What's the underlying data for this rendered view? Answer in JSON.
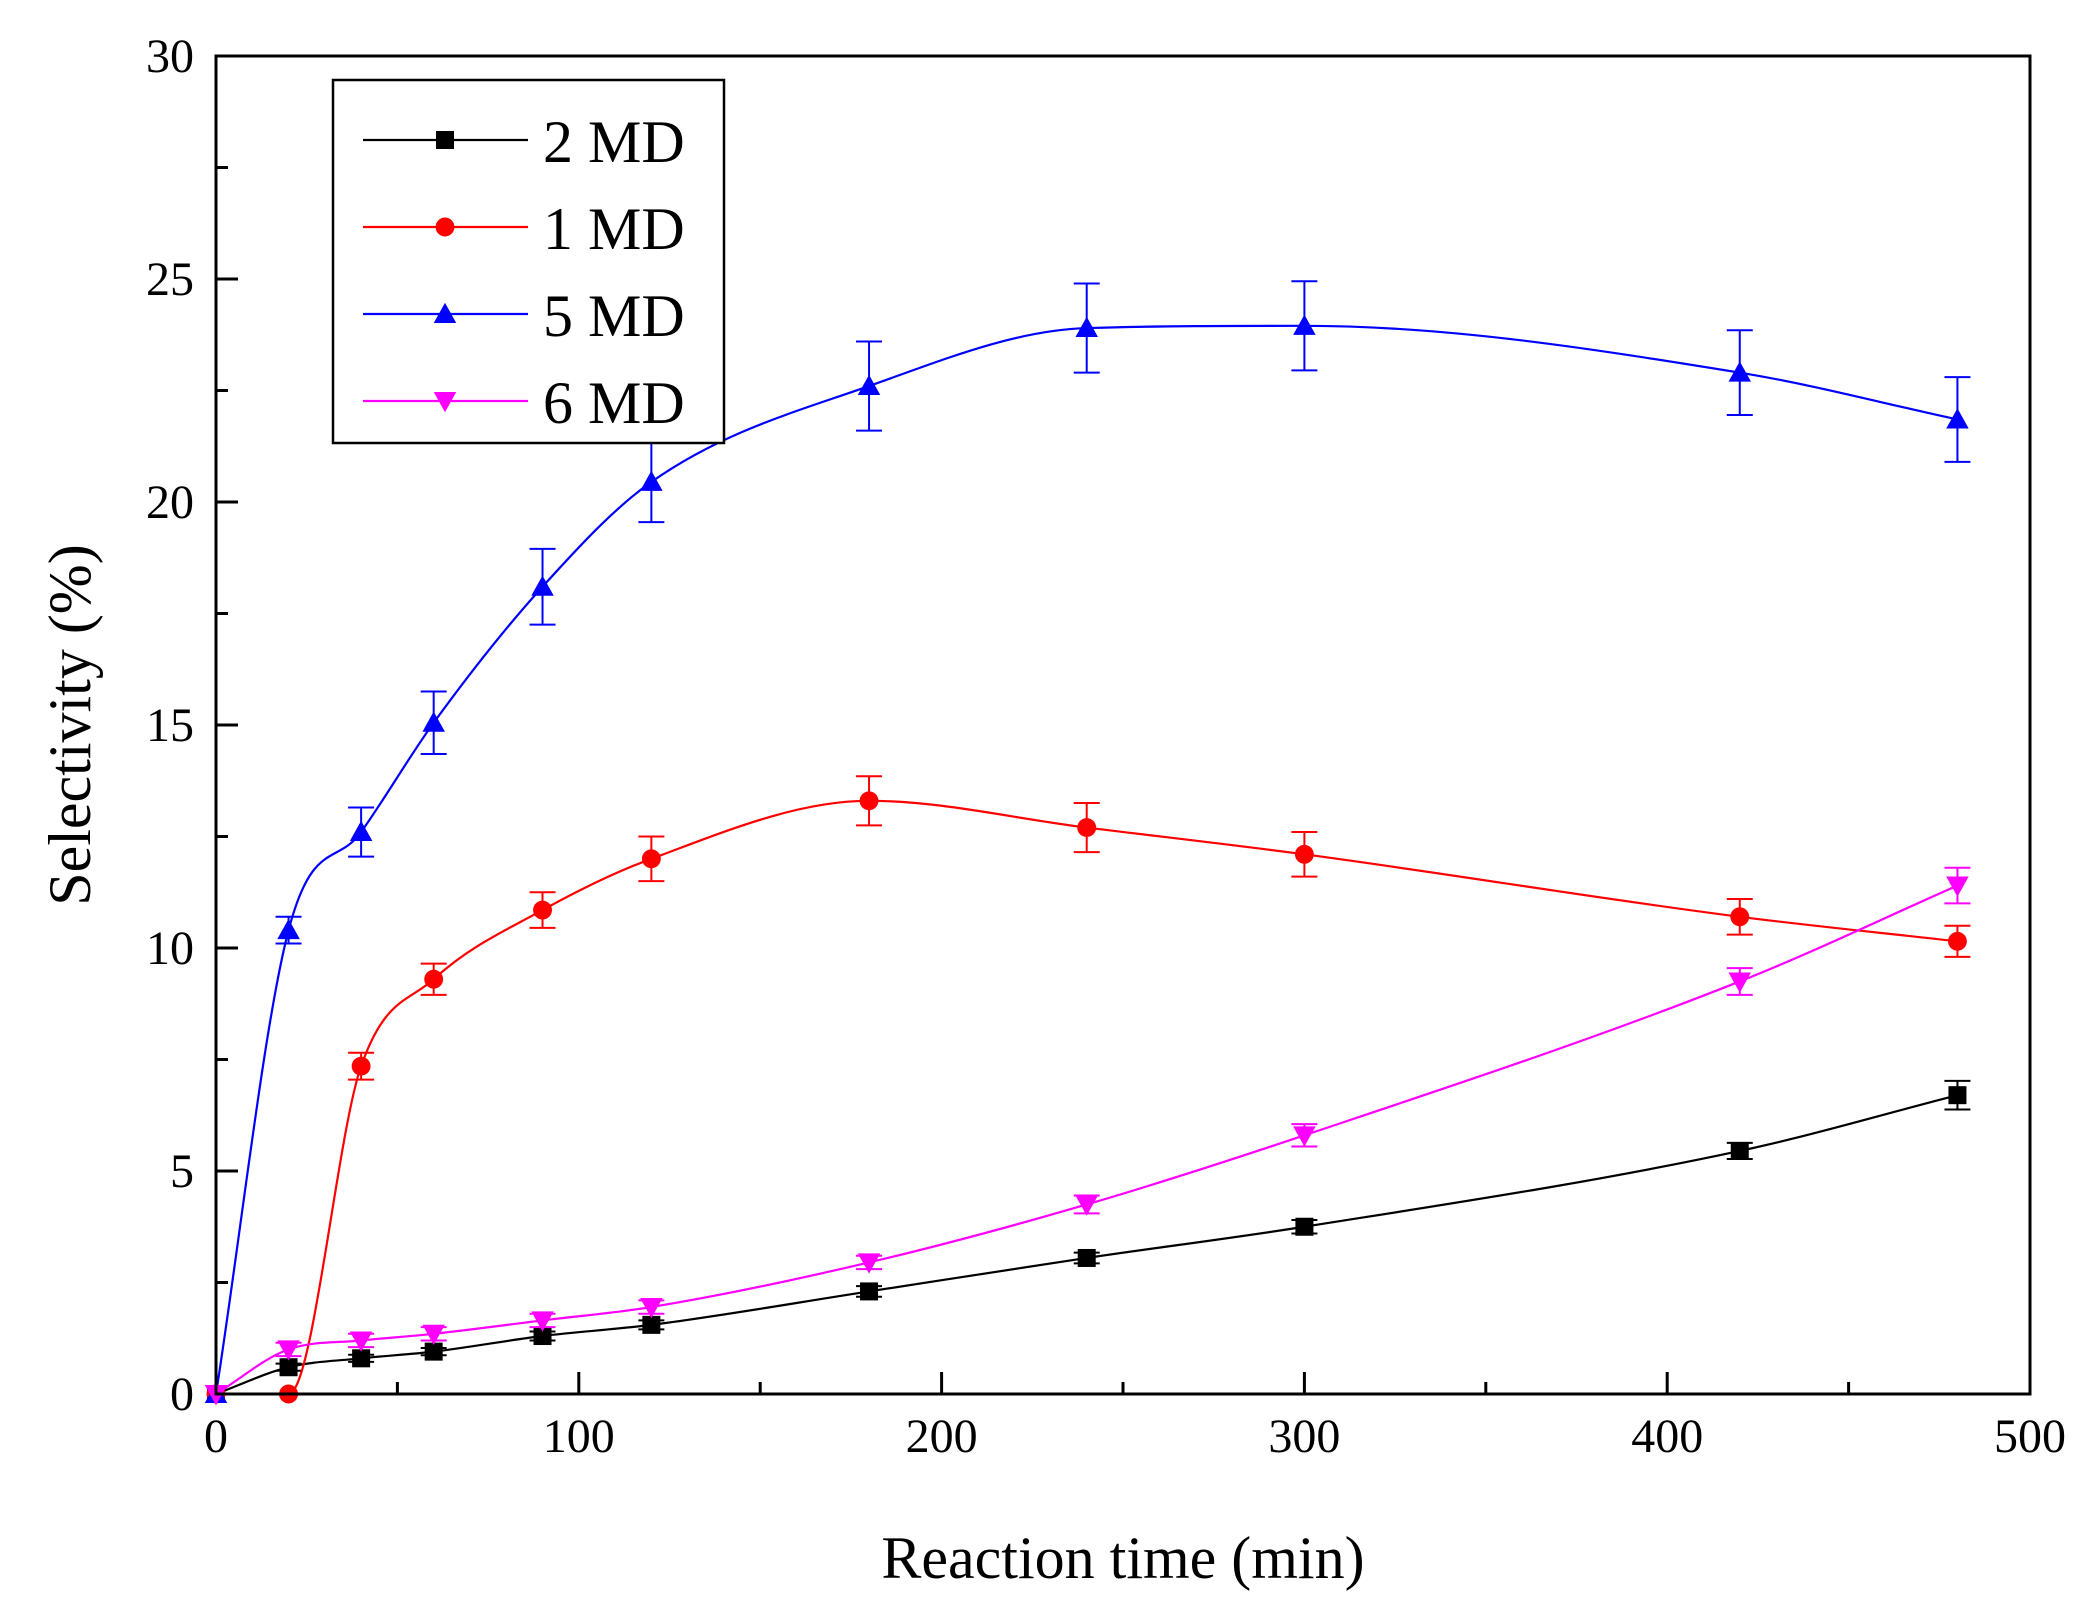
{
  "chart_data": {
    "type": "line",
    "title": "",
    "xlabel": "Reaction time (min)",
    "ylabel": "Selectivity (%)",
    "xlim": [
      0,
      500
    ],
    "ylim": [
      0,
      30
    ],
    "x_major_ticks": [
      0,
      100,
      200,
      300,
      400,
      500
    ],
    "x_tick_labels": [
      "0",
      "100",
      "200",
      "300",
      "400",
      "500"
    ],
    "y_major_ticks": [
      0,
      5,
      10,
      15,
      20,
      25,
      30
    ],
    "y_tick_labels": [
      "0",
      "5",
      "10",
      "15",
      "20",
      "25",
      "30"
    ],
    "grid": false,
    "legend_position": "top-left",
    "error_bars": true,
    "smoothed_lines": true,
    "series": [
      {
        "name": "2 MD",
        "color": "#000000",
        "marker": "square",
        "x": [
          0,
          20,
          40,
          60,
          90,
          120,
          180,
          240,
          300,
          420,
          480
        ],
        "y": [
          0,
          0.6,
          0.8,
          0.95,
          1.3,
          1.55,
          2.3,
          3.05,
          3.75,
          5.45,
          6.7
        ],
        "err": [
          0,
          0.08,
          0.08,
          0.08,
          0.1,
          0.1,
          0.12,
          0.12,
          0.15,
          0.18,
          0.32
        ]
      },
      {
        "name": "1 MD",
        "color": "#ff0000",
        "marker": "circle",
        "x": [
          0,
          20,
          40,
          60,
          90,
          120,
          180,
          240,
          300,
          420,
          480
        ],
        "y": [
          0,
          0,
          7.35,
          9.3,
          10.85,
          12.0,
          13.3,
          12.7,
          12.1,
          10.7,
          10.15
        ],
        "err": [
          0,
          0,
          0.3,
          0.35,
          0.4,
          0.5,
          0.55,
          0.55,
          0.5,
          0.4,
          0.35
        ]
      },
      {
        "name": "5 MD",
        "color": "#0000ff",
        "marker": "triangle-up",
        "x": [
          0,
          20,
          40,
          60,
          90,
          120,
          180,
          240,
          300,
          420,
          480
        ],
        "y": [
          0,
          10.4,
          12.6,
          15.05,
          18.1,
          20.45,
          22.6,
          23.9,
          23.95,
          22.9,
          21.85
        ],
        "err": [
          0,
          0.3,
          0.55,
          0.7,
          0.85,
          0.9,
          1.0,
          1.0,
          1.0,
          0.95,
          0.95
        ]
      },
      {
        "name": "6 MD",
        "color": "#ff00ff",
        "marker": "triangle-down",
        "x": [
          0,
          20,
          40,
          60,
          90,
          120,
          180,
          240,
          300,
          420,
          480
        ],
        "y": [
          0,
          1.0,
          1.2,
          1.35,
          1.65,
          1.95,
          2.95,
          4.25,
          5.8,
          9.25,
          11.4
        ],
        "err": [
          0,
          0.15,
          0.15,
          0.15,
          0.15,
          0.15,
          0.15,
          0.2,
          0.25,
          0.3,
          0.4
        ]
      }
    ]
  }
}
